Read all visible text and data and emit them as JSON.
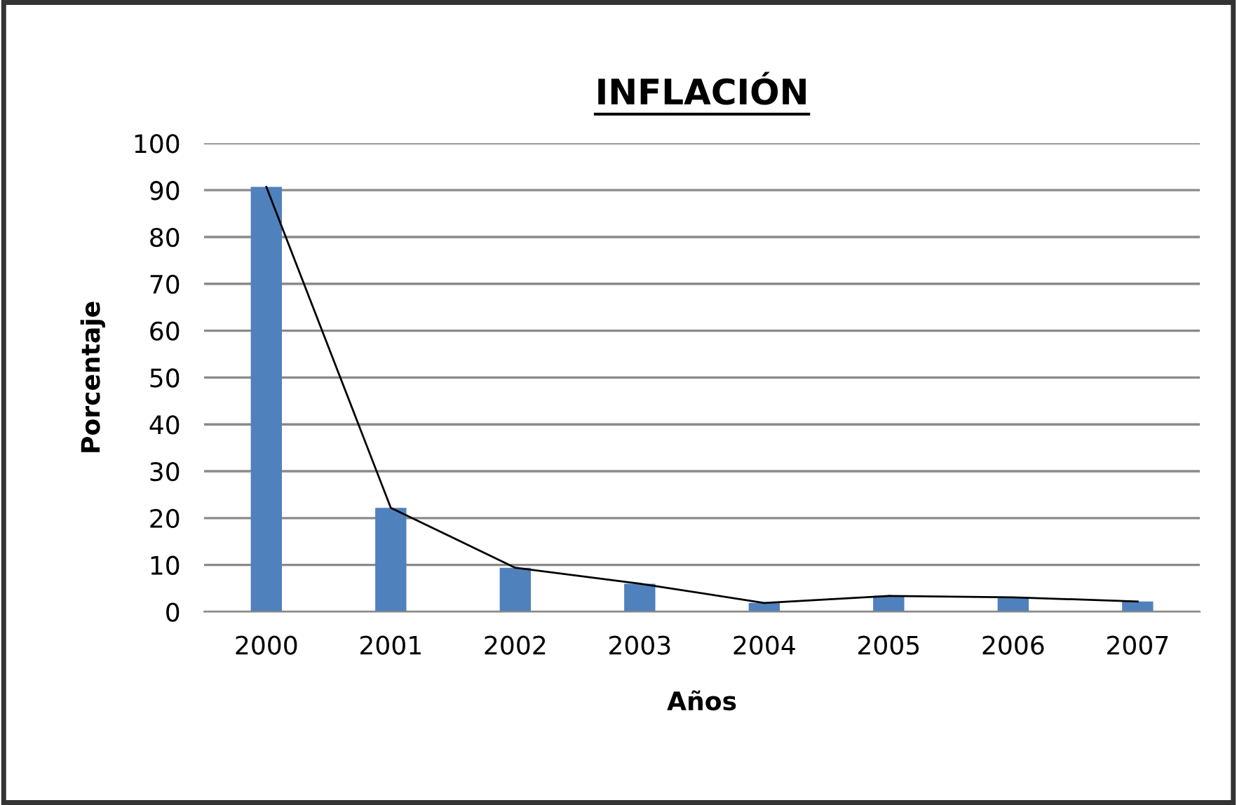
{
  "chart_data": {
    "type": "bar",
    "title": "INFLACIÓN",
    "xlabel": "Años",
    "ylabel": "Porcentaje",
    "categories": [
      "2000",
      "2001",
      "2002",
      "2003",
      "2004",
      "2005",
      "2006",
      "2007"
    ],
    "series": [
      {
        "color": "#4f81bd",
        "values": [
          90.7,
          22.2,
          9.4,
          6.0,
          1.9,
          3.4,
          3.1,
          2.2
        ]
      },
      {
        "type": "line",
        "color": "#000000",
        "values": [
          90.7,
          22.2,
          9.4,
          6.0,
          1.9,
          3.4,
          3.1,
          2.2
        ]
      }
    ],
    "ylim": [
      0,
      100
    ],
    "yticks": [
      0,
      10,
      20,
      30,
      40,
      50,
      60,
      70,
      80,
      90,
      100
    ],
    "grid": "y",
    "legend": false,
    "marker": "none",
    "line_style": "solid"
  }
}
